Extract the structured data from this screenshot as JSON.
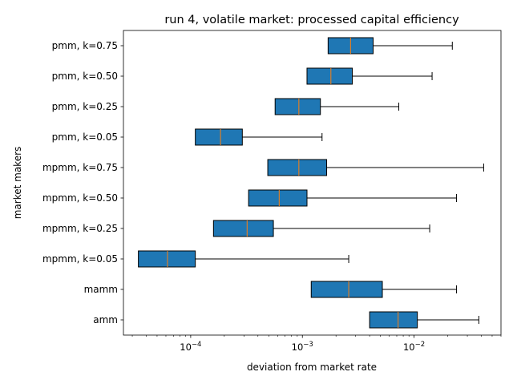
{
  "chart_data": {
    "type": "boxplot",
    "orientation": "horizontal",
    "title": "run 4, volatile market: processed capital efficiency",
    "xlabel": "deviation from market rate",
    "ylabel": "market makers",
    "xscale": "log",
    "xlim": [
      2.5e-05,
      0.06
    ],
    "x_ticks": [
      {
        "value": 0.0001,
        "base": "10",
        "exp": "−4"
      },
      {
        "value": 0.001,
        "base": "10",
        "exp": "−3"
      },
      {
        "value": 0.01,
        "base": "10",
        "exp": "−2"
      }
    ],
    "grid": false,
    "categories": [
      "pmm, k=0.75",
      "pmm, k=0.50",
      "pmm, k=0.25",
      "pmm, k=0.05",
      "mpmm, k=0.75",
      "mpmm, k=0.50",
      "mpmm, k=0.25",
      "mpmm, k=0.05",
      "mamm",
      "amm"
    ],
    "boxes": [
      {
        "label": "pmm, k=0.75",
        "whisker_low": 0.0017,
        "q1": 0.0017,
        "median": 0.0027,
        "q3": 0.0043,
        "whisker_high": 0.022
      },
      {
        "label": "pmm, k=0.50",
        "whisker_low": 0.0011,
        "q1": 0.0011,
        "median": 0.0018,
        "q3": 0.0028,
        "whisker_high": 0.0145
      },
      {
        "label": "pmm, k=0.25",
        "whisker_low": 0.00057,
        "q1": 0.00057,
        "median": 0.00093,
        "q3": 0.00145,
        "whisker_high": 0.0073
      },
      {
        "label": "pmm, k=0.05",
        "whisker_low": 0.00011,
        "q1": 0.00011,
        "median": 0.000185,
        "q3": 0.00029,
        "whisker_high": 0.0015
      },
      {
        "label": "mpmm, k=0.75",
        "whisker_low": 0.00049,
        "q1": 0.00049,
        "median": 0.00093,
        "q3": 0.00165,
        "whisker_high": 0.042
      },
      {
        "label": "mpmm, k=0.50",
        "whisker_low": 0.00033,
        "q1": 0.00033,
        "median": 0.00062,
        "q3": 0.0011,
        "whisker_high": 0.024
      },
      {
        "label": "mpmm, k=0.25",
        "whisker_low": 0.00016,
        "q1": 0.00016,
        "median": 0.00032,
        "q3": 0.00055,
        "whisker_high": 0.0138
      },
      {
        "label": "mpmm, k=0.05",
        "whisker_low": 3.4e-05,
        "q1": 3.4e-05,
        "median": 6.2e-05,
        "q3": 0.00011,
        "whisker_high": 0.0026
      },
      {
        "label": "mamm",
        "whisker_low": 0.0012,
        "q1": 0.0012,
        "median": 0.0026,
        "q3": 0.0052,
        "whisker_high": 0.024
      },
      {
        "label": "amm",
        "whisker_low": 0.004,
        "q1": 0.004,
        "median": 0.0072,
        "q3": 0.0107,
        "whisker_high": 0.038
      }
    ],
    "colors": {
      "box_fill": "#1f77b4",
      "median": "#ff7f0e",
      "edge": "#000000",
      "background": "#ffffff"
    }
  }
}
